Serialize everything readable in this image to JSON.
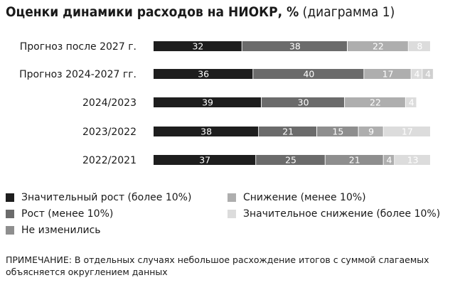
{
  "title": {
    "bold": "Оценки динамики расходов на НИОКР, %",
    "normal": " (диаграмма 1)"
  },
  "chart_data": {
    "type": "bar",
    "orientation": "horizontal",
    "stacked": true,
    "categories": [
      "Прогноз после 2027 г.",
      "Прогноз 2024-2027 гг.",
      "2024/2023",
      "2023/2022",
      "2022/2021"
    ],
    "series": [
      {
        "name": "Значительный рост (более 10%)",
        "color": "#1e1e1e",
        "values": [
          32,
          36,
          39,
          38,
          37
        ]
      },
      {
        "name": "Рост (менее 10%)",
        "color": "#6b6b6b",
        "values": [
          38,
          40,
          30,
          21,
          25
        ]
      },
      {
        "name": "Не изменились",
        "color": "#8e8e8e",
        "values": [
          null,
          null,
          null,
          15,
          21
        ]
      },
      {
        "name": "Снижение (менее 10%)",
        "color": "#aeaeae",
        "values": [
          22,
          17,
          22,
          9,
          4
        ]
      },
      {
        "name": "Значительное снижение (более 10%)",
        "color": "#dcdcdc",
        "values": [
          8,
          4,
          4,
          17,
          13
        ]
      }
    ],
    "extra_segments": [
      {
        "category_index": 1,
        "value": 4,
        "color": "#d0d0d0"
      }
    ],
    "legend_position": "bottom",
    "grid": false
  },
  "note": "ПРИМЕЧАНИЕ: В отдельных случаях небольшое расхождение итогов с суммой слагаемых объясняется округлением данных"
}
